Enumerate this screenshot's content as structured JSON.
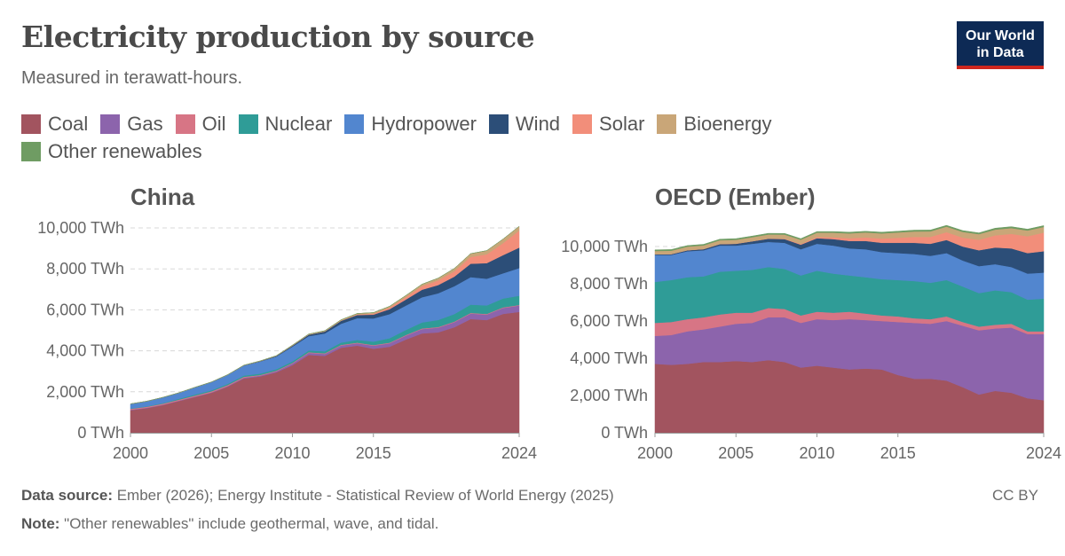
{
  "header": {
    "title": "Electricity production by source",
    "subtitle": "Measured in terawatt-hours.",
    "logo_line1": "Our World",
    "logo_line2": "in Data"
  },
  "footer": {
    "source_label": "Data source:",
    "source_text": " Ember (2026); Energy Institute - Statistical Review of World Energy (2025)",
    "note_label": "Note:",
    "note_text": " \"Other renewables\" include geothermal, wave, and tidal.",
    "license": "CC BY"
  },
  "legend": [
    {
      "name": "Coal",
      "color": "#a2545f"
    },
    {
      "name": "Gas",
      "color": "#8c64ac"
    },
    {
      "name": "Oil",
      "color": "#d77585"
    },
    {
      "name": "Nuclear",
      "color": "#2f9c97"
    },
    {
      "name": "Hydropower",
      "color": "#5286cf"
    },
    {
      "name": "Wind",
      "color": "#2c4e78"
    },
    {
      "name": "Solar",
      "color": "#f28e7a"
    },
    {
      "name": "Bioenergy",
      "color": "#c9a678"
    },
    {
      "name": "Other renewables",
      "color": "#6f9c63"
    }
  ],
  "chart_data": [
    {
      "type": "area",
      "stacked": true,
      "title": "China",
      "unit": "TWh",
      "ylim": [
        0,
        10000
      ],
      "yticks": [
        "0 TWh",
        "2,000 TWh",
        "4,000 TWh",
        "6,000 TWh",
        "8,000 TWh",
        "10,000 TWh"
      ],
      "ytick_values": [
        0,
        2000,
        4000,
        6000,
        8000,
        10000
      ],
      "xticks": [
        "2000",
        "2005",
        "2010",
        "2015",
        "2024"
      ],
      "xtick_values": [
        2000,
        2005,
        2010,
        2015,
        2024
      ],
      "x": [
        2000,
        2001,
        2002,
        2003,
        2004,
        2005,
        2006,
        2007,
        2008,
        2009,
        2010,
        2011,
        2012,
        2013,
        2014,
        2015,
        2016,
        2017,
        2018,
        2019,
        2020,
        2021,
        2022,
        2023,
        2024
      ],
      "series": [
        {
          "name": "Coal",
          "values": [
            1100,
            1200,
            1350,
            1550,
            1750,
            1950,
            2250,
            2650,
            2750,
            2950,
            3300,
            3800,
            3750,
            4150,
            4250,
            4100,
            4200,
            4550,
            4850,
            4900,
            5150,
            5550,
            5500,
            5800,
            5900
          ]
        },
        {
          "name": "Gas",
          "values": [
            20,
            20,
            20,
            20,
            20,
            20,
            30,
            40,
            40,
            50,
            80,
            100,
            100,
            110,
            120,
            150,
            170,
            190,
            210,
            230,
            250,
            270,
            270,
            290,
            310
          ]
        },
        {
          "name": "Oil",
          "values": [
            50,
            50,
            50,
            50,
            50,
            50,
            50,
            40,
            30,
            30,
            30,
            30,
            30,
            30,
            30,
            30,
            30,
            30,
            30,
            30,
            30,
            30,
            30,
            30,
            30
          ]
        },
        {
          "name": "Nuclear",
          "values": [
            17,
            17,
            25,
            43,
            50,
            53,
            55,
            62,
            68,
            70,
            74,
            86,
            97,
            112,
            133,
            171,
            213,
            248,
            295,
            348,
            366,
            407,
            418,
            435,
            450
          ]
        },
        {
          "name": "Hydropower",
          "values": [
            220,
            250,
            280,
            290,
            350,
            400,
            440,
            490,
            590,
            620,
            720,
            700,
            870,
            920,
            1060,
            1130,
            1180,
            1190,
            1230,
            1300,
            1360,
            1340,
            1300,
            1230,
            1350
          ]
        },
        {
          "name": "Wind",
          "values": [
            1,
            1,
            1,
            1,
            1,
            2,
            3,
            6,
            15,
            28,
            45,
            70,
            96,
            141,
            156,
            186,
            241,
            295,
            366,
            406,
            467,
            656,
            763,
            886,
            1000
          ]
        },
        {
          "name": "Solar",
          "values": [
            0,
            0,
            0,
            0,
            0,
            0,
            0,
            0,
            0,
            0,
            1,
            3,
            4,
            8,
            24,
            45,
            75,
            118,
            177,
            224,
            261,
            327,
            427,
            584,
            830
          ]
        },
        {
          "name": "Bioenergy",
          "values": [
            3,
            3,
            3,
            3,
            3,
            5,
            7,
            9,
            12,
            16,
            25,
            30,
            35,
            42,
            48,
            53,
            65,
            80,
            93,
            113,
            136,
            166,
            182,
            198,
            210
          ]
        },
        {
          "name": "Other renewables",
          "values": [
            0,
            0,
            0,
            0,
            0,
            0,
            0,
            0,
            0,
            0,
            0,
            0,
            0,
            0,
            0,
            0,
            0,
            0,
            0,
            0,
            0,
            0,
            0,
            0,
            0
          ]
        }
      ]
    },
    {
      "type": "area",
      "stacked": true,
      "title": "OECD (Ember)",
      "unit": "TWh",
      "ylim": [
        0,
        11000
      ],
      "yticks": [
        "0 TWh",
        "2,000 TWh",
        "4,000 TWh",
        "6,000 TWh",
        "8,000 TWh",
        "10,000 TWh"
      ],
      "ytick_values": [
        0,
        2000,
        4000,
        6000,
        8000,
        10000
      ],
      "xticks": [
        "2000",
        "2005",
        "2010",
        "2015",
        "2024"
      ],
      "xtick_values": [
        2000,
        2005,
        2010,
        2015,
        2024
      ],
      "x": [
        2000,
        2001,
        2002,
        2003,
        2004,
        2005,
        2006,
        2007,
        2008,
        2009,
        2010,
        2011,
        2012,
        2013,
        2014,
        2015,
        2016,
        2017,
        2018,
        2019,
        2020,
        2021,
        2022,
        2023,
        2024
      ],
      "series": [
        {
          "name": "Coal",
          "values": [
            3700,
            3650,
            3700,
            3800,
            3800,
            3850,
            3800,
            3900,
            3800,
            3500,
            3600,
            3500,
            3400,
            3450,
            3400,
            3100,
            2900,
            2900,
            2800,
            2450,
            2050,
            2250,
            2150,
            1850,
            1750
          ]
        },
        {
          "name": "Gas",
          "values": [
            1500,
            1600,
            1750,
            1750,
            1900,
            2000,
            2100,
            2300,
            2400,
            2400,
            2500,
            2550,
            2700,
            2600,
            2600,
            2850,
            3000,
            2950,
            3200,
            3300,
            3450,
            3350,
            3500,
            3450,
            3550
          ]
        },
        {
          "name": "Oil",
          "values": [
            700,
            700,
            650,
            650,
            650,
            600,
            550,
            500,
            450,
            400,
            400,
            400,
            400,
            350,
            300,
            300,
            250,
            250,
            250,
            200,
            200,
            200,
            200,
            150,
            150
          ]
        },
        {
          "name": "Nuclear",
          "values": [
            2200,
            2250,
            2250,
            2200,
            2300,
            2250,
            2300,
            2200,
            2150,
            2150,
            2200,
            2100,
            1950,
            1950,
            1950,
            1950,
            2000,
            1950,
            1950,
            1900,
            1800,
            1850,
            1700,
            1700,
            1750
          ]
        },
        {
          "name": "Hydropower",
          "values": [
            1450,
            1350,
            1400,
            1400,
            1400,
            1350,
            1400,
            1350,
            1400,
            1400,
            1450,
            1500,
            1450,
            1500,
            1450,
            1450,
            1450,
            1450,
            1450,
            1400,
            1450,
            1400,
            1350,
            1400,
            1400
          ]
        },
        {
          "name": "Wind",
          "values": [
            30,
            40,
            50,
            60,
            80,
            100,
            130,
            170,
            200,
            250,
            300,
            350,
            400,
            450,
            500,
            550,
            600,
            650,
            700,
            750,
            850,
            900,
            1000,
            1100,
            1150
          ]
        },
        {
          "name": "Solar",
          "values": [
            2,
            3,
            4,
            5,
            6,
            8,
            10,
            15,
            25,
            40,
            60,
            100,
            150,
            190,
            230,
            270,
            320,
            370,
            420,
            480,
            560,
            650,
            780,
            900,
            1000
          ]
        },
        {
          "name": "Bioenergy",
          "values": [
            180,
            185,
            190,
            195,
            200,
            205,
            210,
            215,
            220,
            225,
            235,
            245,
            255,
            265,
            275,
            285,
            290,
            295,
            300,
            305,
            305,
            310,
            310,
            310,
            300
          ]
        },
        {
          "name": "Other renewables",
          "values": [
            60,
            60,
            60,
            60,
            60,
            60,
            60,
            60,
            60,
            60,
            60,
            60,
            65,
            65,
            65,
            70,
            70,
            70,
            70,
            70,
            70,
            75,
            75,
            75,
            75
          ]
        }
      ]
    }
  ]
}
